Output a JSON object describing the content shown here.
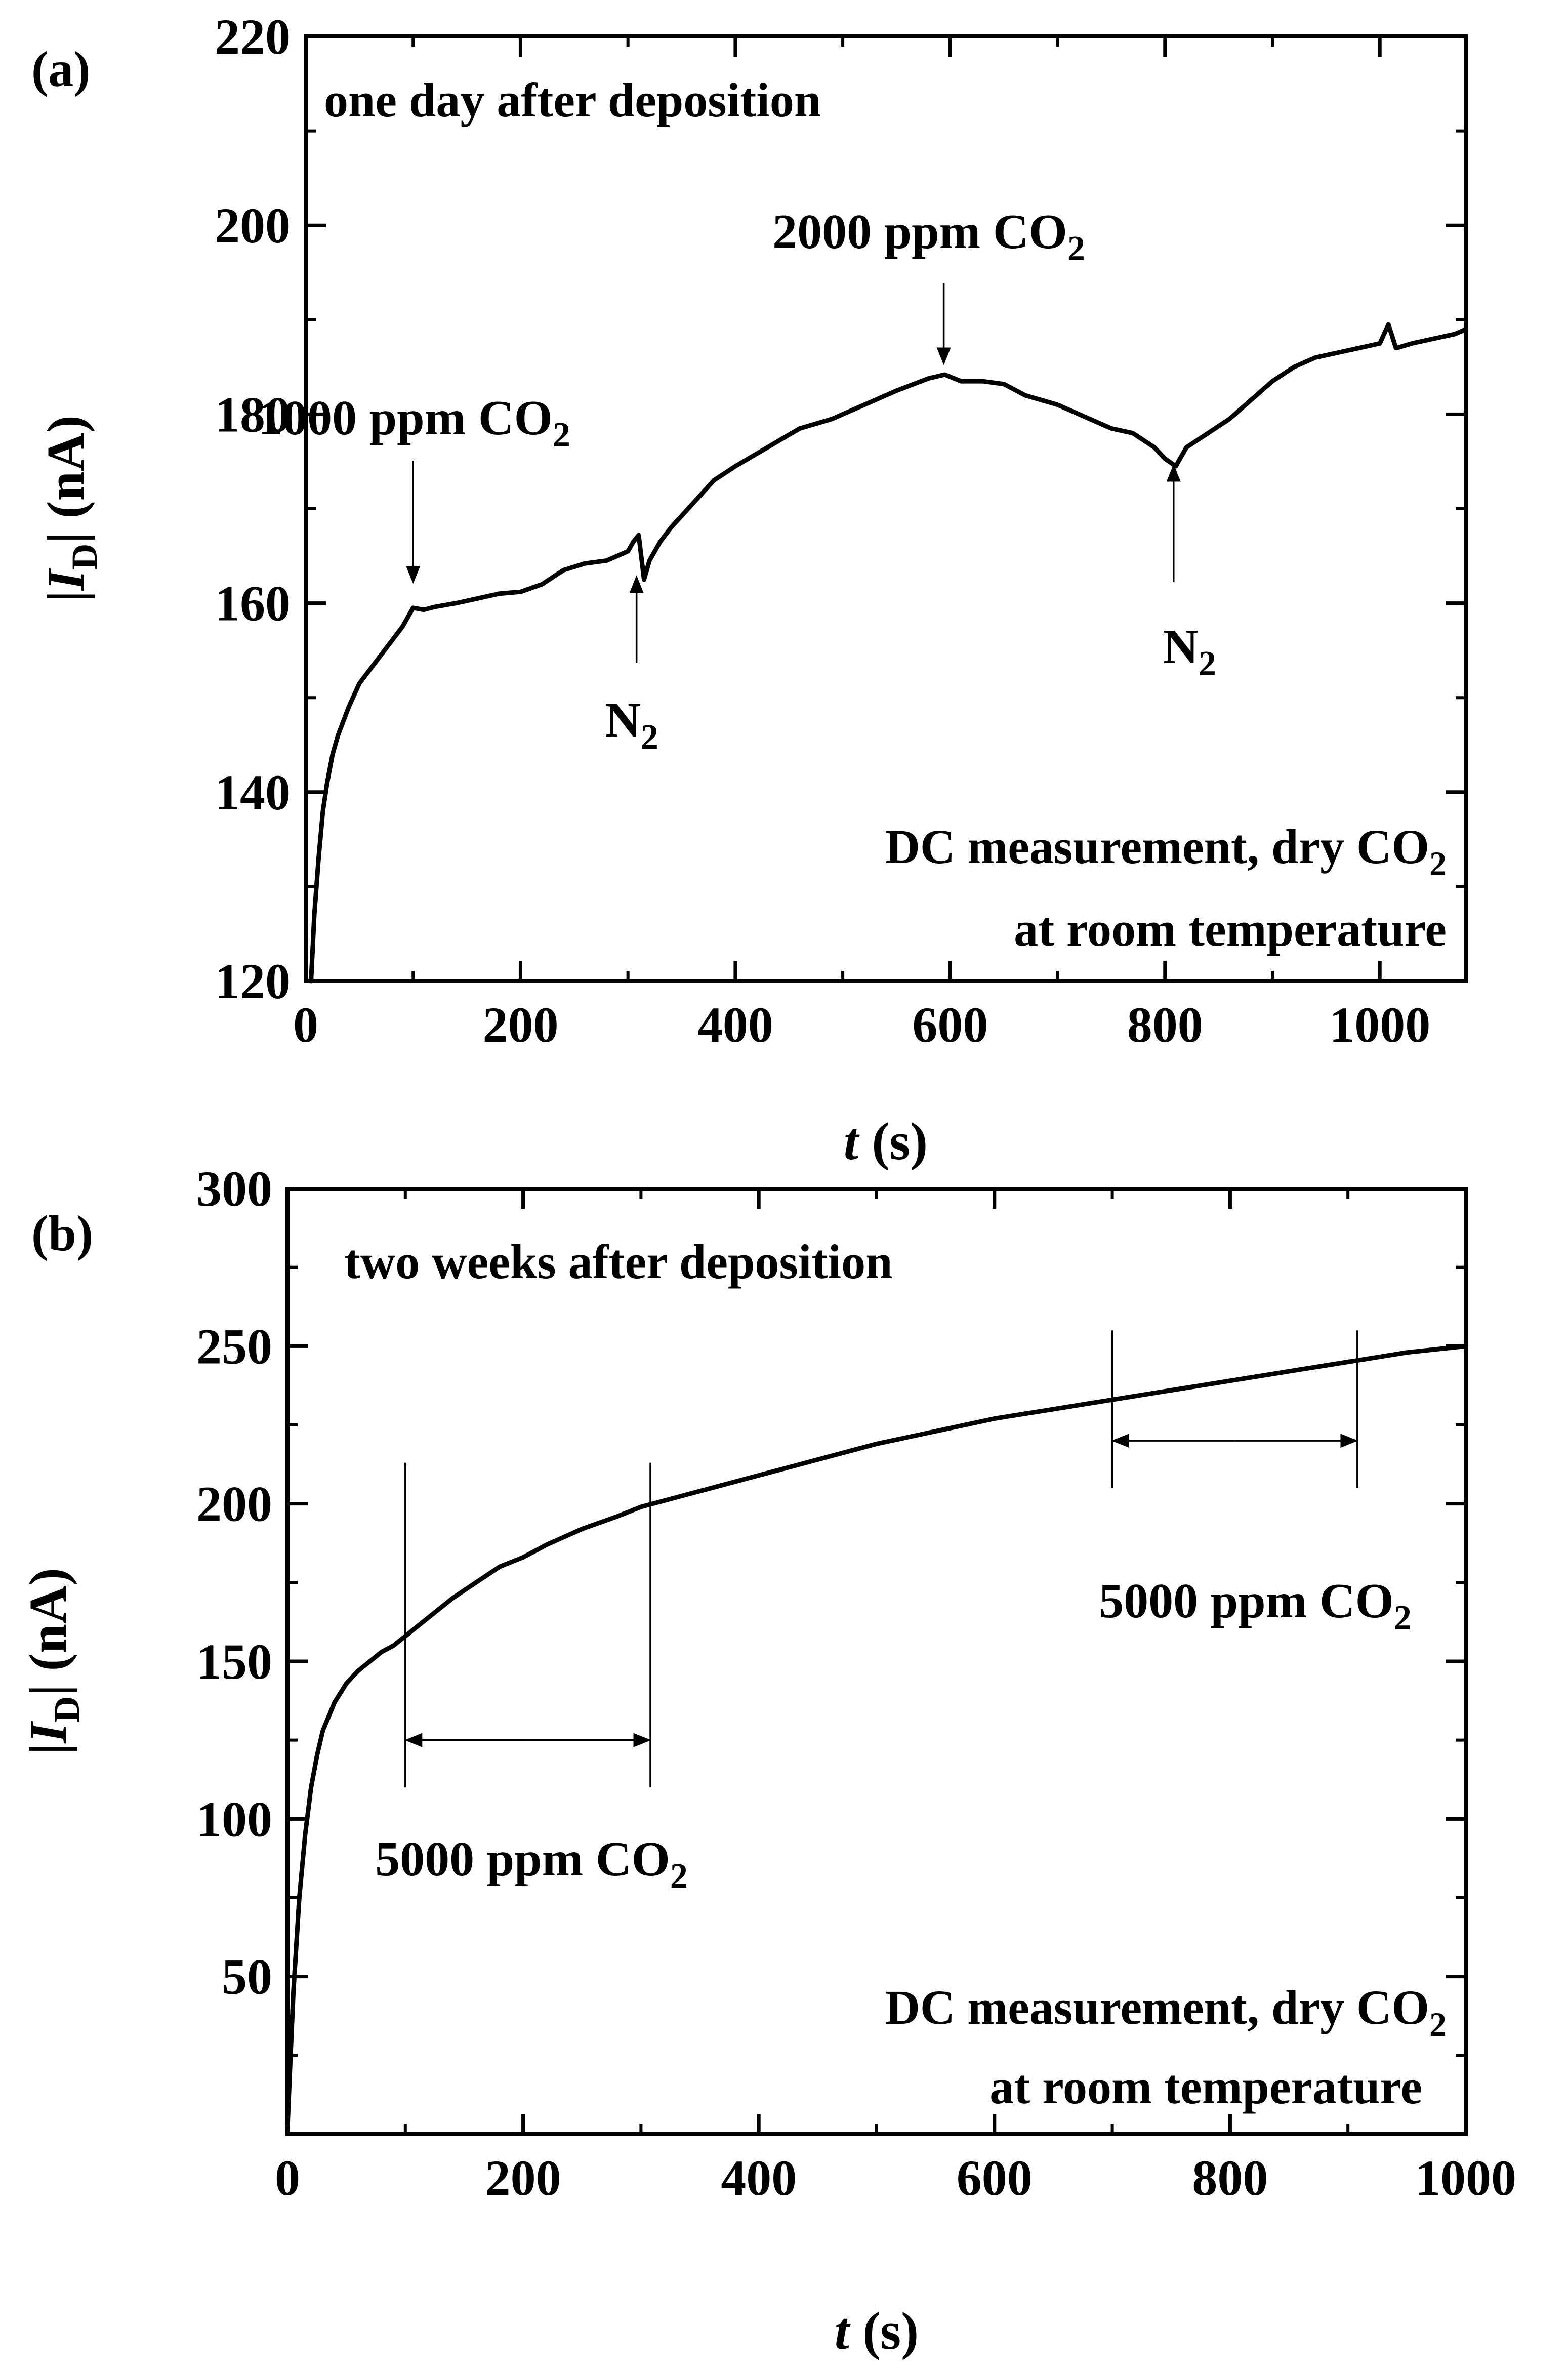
{
  "chart_data": [
    {
      "type": "line",
      "panel_label": "(a)",
      "title": "",
      "xlabel": {
        "var": "t",
        "unit": " (s)"
      },
      "ylabel": {
        "pre": "|",
        "var": "I",
        "sub": "D",
        "post": "| (nA)"
      },
      "xlim": [
        0,
        1080
      ],
      "ylim": [
        120,
        220
      ],
      "xticks": [
        0,
        200,
        400,
        600,
        800,
        1000
      ],
      "yticks": [
        120,
        140,
        160,
        180,
        200,
        220
      ],
      "grid": false,
      "legend": "none",
      "notes": [
        {
          "id": "condition",
          "text": "one day after deposition"
        },
        {
          "id": "method-1",
          "text": "DC measurement, dry CO",
          "sub": "2"
        },
        {
          "id": "method-2",
          "text": "at room temperature"
        }
      ],
      "events": [
        {
          "text": "1000 ppm  CO",
          "sub": "2",
          "x": 100,
          "y": 160,
          "direction": "down"
        },
        {
          "text": "N",
          "sub": "2",
          "x": 308,
          "y": 165,
          "direction": "up"
        },
        {
          "text": "2000 ppm  CO",
          "sub": "2",
          "x": 594,
          "y": 184,
          "direction": "down"
        },
        {
          "text": "N",
          "sub": "2",
          "x": 808,
          "y": 175,
          "direction": "up"
        }
      ],
      "series": [
        {
          "x": [
            5,
            8,
            12,
            16,
            20,
            25,
            30,
            40,
            50,
            60,
            70,
            80,
            90,
            100,
            110,
            120,
            140,
            160,
            180,
            200,
            220,
            240,
            260,
            280,
            300,
            305,
            310,
            315,
            320,
            330,
            340,
            360,
            380,
            400,
            430,
            460,
            490,
            520,
            550,
            580,
            595,
            610,
            630,
            650,
            670,
            700,
            720,
            750,
            770,
            790,
            800,
            810,
            820,
            840,
            860,
            880,
            900,
            920,
            940,
            960,
            980,
            1000,
            1008,
            1015,
            1030,
            1050,
            1070,
            1080
          ],
          "y": [
            120,
            127,
            133,
            138,
            141,
            144,
            146,
            149,
            151.5,
            153,
            154.5,
            156,
            157.5,
            159.5,
            159.3,
            159.6,
            160,
            160.5,
            161,
            161.2,
            162,
            163.5,
            164.2,
            164.5,
            165.5,
            166.5,
            167.2,
            162.5,
            164.5,
            166.5,
            168,
            170.5,
            173,
            174.5,
            176.5,
            178.5,
            179.5,
            181,
            182.5,
            183.8,
            184.2,
            183.5,
            183.5,
            183.2,
            182,
            181,
            180,
            178.5,
            178,
            176.5,
            175.3,
            174.5,
            176.5,
            178,
            179.5,
            181.5,
            183.5,
            185,
            186,
            186.5,
            187,
            187.5,
            189.5,
            187,
            187.5,
            188,
            188.5,
            189
          ]
        }
      ]
    },
    {
      "type": "line",
      "panel_label": "(b)",
      "title": "",
      "xlabel": {
        "var": "t",
        "unit": " (s)"
      },
      "ylabel": {
        "pre": "|",
        "var": "I",
        "sub": "D",
        "post": "| (nA)"
      },
      "xlim": [
        0,
        1000
      ],
      "ylim": [
        0,
        300
      ],
      "xticks": [
        0,
        200,
        400,
        600,
        800,
        1000
      ],
      "yticks": [
        50,
        100,
        150,
        200,
        250,
        300
      ],
      "grid": false,
      "legend": "none",
      "notes": [
        {
          "id": "condition",
          "text": "two weeks after deposition"
        },
        {
          "id": "method-1",
          "text": "DC measurement, dry CO",
          "sub": "2"
        },
        {
          "id": "method-2",
          "text": "at room temperature"
        }
      ],
      "intervals": [
        {
          "text": "5000 ppm CO",
          "sub": "2",
          "x0": 100,
          "x1": 308,
          "line_y": [
            110,
            213
          ],
          "arrow_y": 125,
          "label_position": "below"
        },
        {
          "text": "5000 ppm CO",
          "sub": "2",
          "x0": 700,
          "x1": 908,
          "line_y": [
            205,
            255
          ],
          "arrow_y": 220,
          "label_position": "below"
        }
      ],
      "series": [
        {
          "x": [
            0,
            2,
            5,
            10,
            15,
            20,
            25,
            30,
            40,
            50,
            60,
            70,
            80,
            90,
            100,
            120,
            140,
            160,
            180,
            200,
            220,
            250,
            280,
            300,
            330,
            360,
            400,
            450,
            500,
            550,
            600,
            650,
            700,
            750,
            800,
            850,
            900,
            950,
            1000
          ],
          "y": [
            2,
            20,
            45,
            75,
            95,
            110,
            120,
            128,
            137,
            143,
            147,
            150,
            153,
            155,
            158,
            164,
            170,
            175,
            180,
            183,
            187,
            192,
            196,
            199,
            202,
            205,
            209,
            214,
            219,
            223,
            227,
            230,
            233,
            236,
            239,
            242,
            245,
            248,
            250
          ]
        }
      ]
    }
  ]
}
